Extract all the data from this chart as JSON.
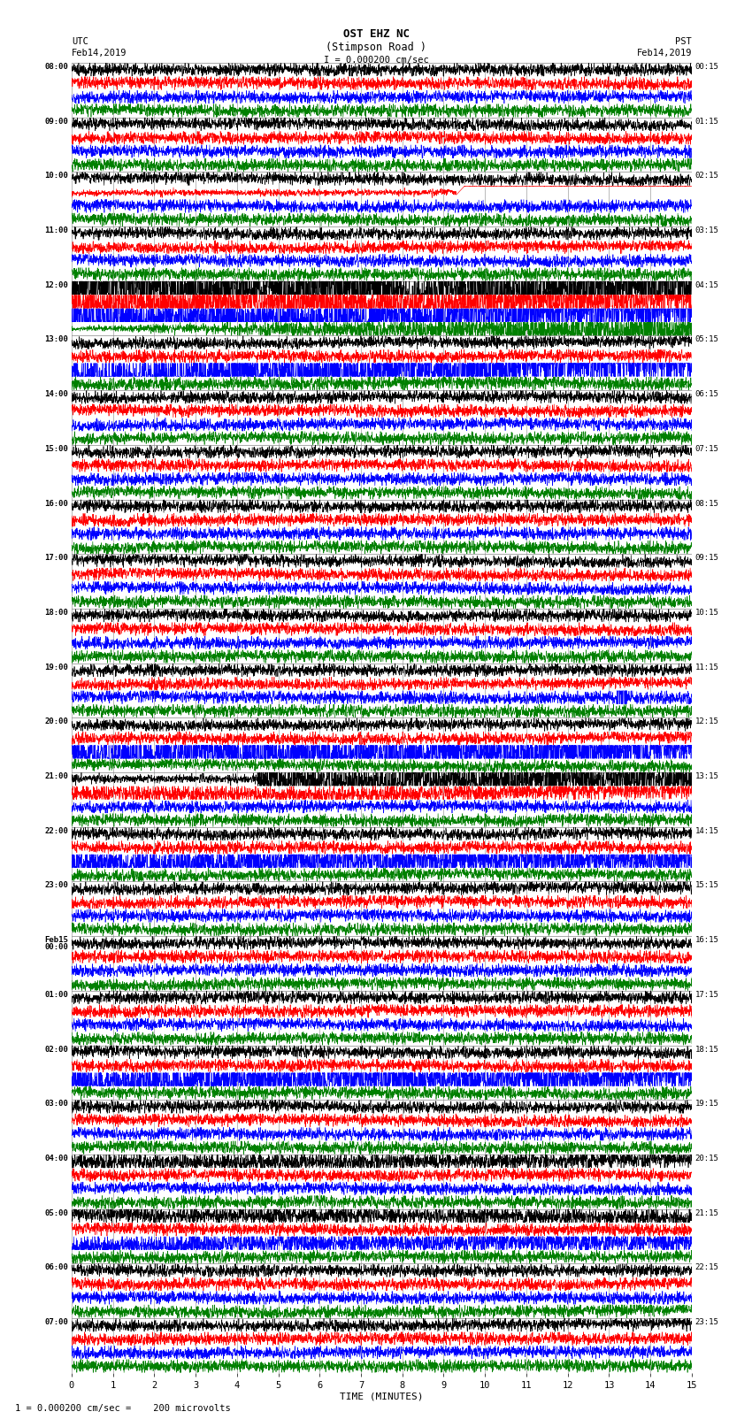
{
  "title_line1": "OST EHZ NC",
  "title_line2": "(Stimpson Road )",
  "title_scale": "I = 0.000200 cm/sec",
  "label_left_top": "UTC",
  "label_left_date": "Feb14,2019",
  "label_right_top": "PST",
  "label_right_date": "Feb14,2019",
  "xlabel": "TIME (MINUTES)",
  "footer": "1 = 0.000200 cm/sec =    200 microvolts",
  "xlim": [
    0,
    15
  ],
  "xticks": [
    0,
    1,
    2,
    3,
    4,
    5,
    6,
    7,
    8,
    9,
    10,
    11,
    12,
    13,
    14,
    15
  ],
  "fig_width": 8.5,
  "fig_height": 16.13,
  "dpi": 100,
  "bg_color": "#ffffff",
  "colors": [
    "black",
    "red",
    "blue",
    "green"
  ],
  "num_groups": 24,
  "left_times": [
    "08:00",
    "09:00",
    "10:00",
    "11:00",
    "12:00",
    "13:00",
    "14:00",
    "15:00",
    "16:00",
    "17:00",
    "18:00",
    "19:00",
    "20:00",
    "21:00",
    "22:00",
    "23:00",
    "Feb15\n00:00",
    "01:00",
    "02:00",
    "03:00",
    "04:00",
    "05:00",
    "06:00",
    "07:00"
  ],
  "right_times": [
    "00:15",
    "01:15",
    "02:15",
    "03:15",
    "04:15",
    "05:15",
    "06:15",
    "07:15",
    "08:15",
    "09:15",
    "10:15",
    "11:15",
    "12:15",
    "13:15",
    "14:15",
    "15:15",
    "16:15",
    "17:15",
    "18:15",
    "19:15",
    "20:15",
    "21:15",
    "22:15",
    "23:15"
  ],
  "grid_color": "#888888",
  "trace_amp_default": 0.28,
  "noise_amp_default": 0.07,
  "group_row_colors": [
    "black",
    "red",
    "blue",
    "green"
  ],
  "special_amplitudes": {
    "2_1": 2.5,
    "4_0": 6.0,
    "4_1": 3.0,
    "4_2": 1.5,
    "4_3": 0.8,
    "5_2": 5.0,
    "5_3": 1.2,
    "12_2": 3.5,
    "12_3": 1.0,
    "13_0": 4.0,
    "13_1": 1.5,
    "14_2": 3.0,
    "20_0": 1.5,
    "21_0": 1.5,
    "21_2": 2.0
  }
}
